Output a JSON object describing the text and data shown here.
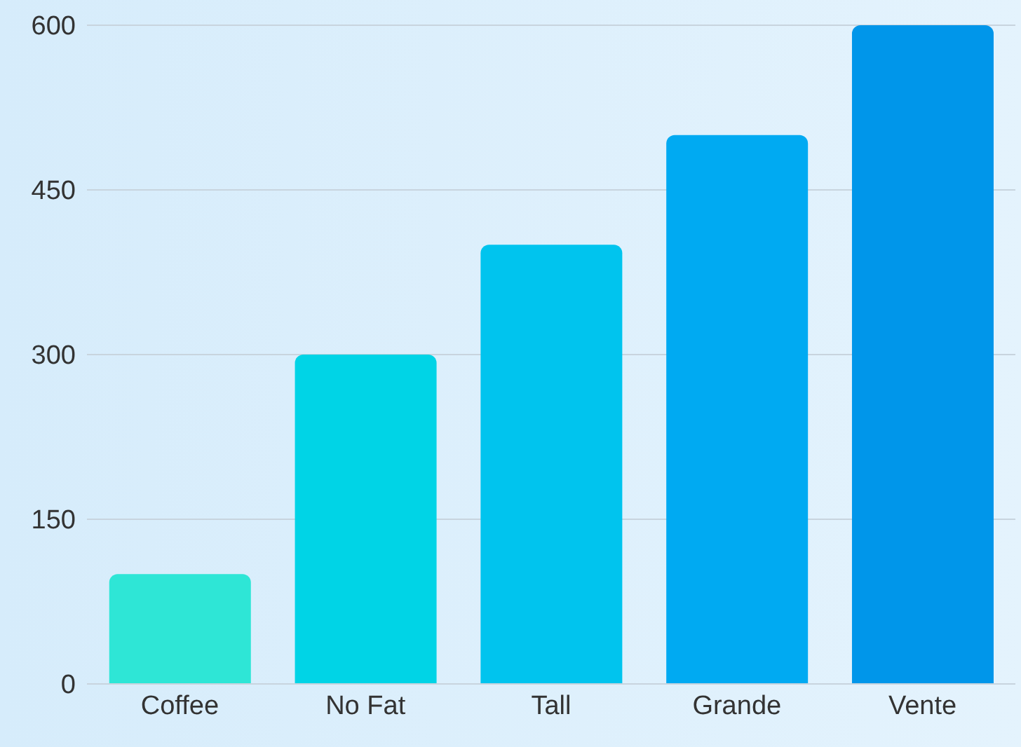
{
  "chart_data": {
    "type": "bar",
    "categories": [
      "Coffee",
      "No Fat",
      "Tall",
      "Grande",
      "Vente"
    ],
    "values": [
      100,
      300,
      400,
      500,
      600
    ],
    "colors": [
      "#2ee6d6",
      "#00d4e6",
      "#00c4ee",
      "#00aaf2",
      "#0096ea"
    ],
    "ylim": [
      0,
      600
    ],
    "yticks": [
      0,
      150,
      300,
      450,
      600
    ],
    "grid": "y",
    "legend": false
  }
}
